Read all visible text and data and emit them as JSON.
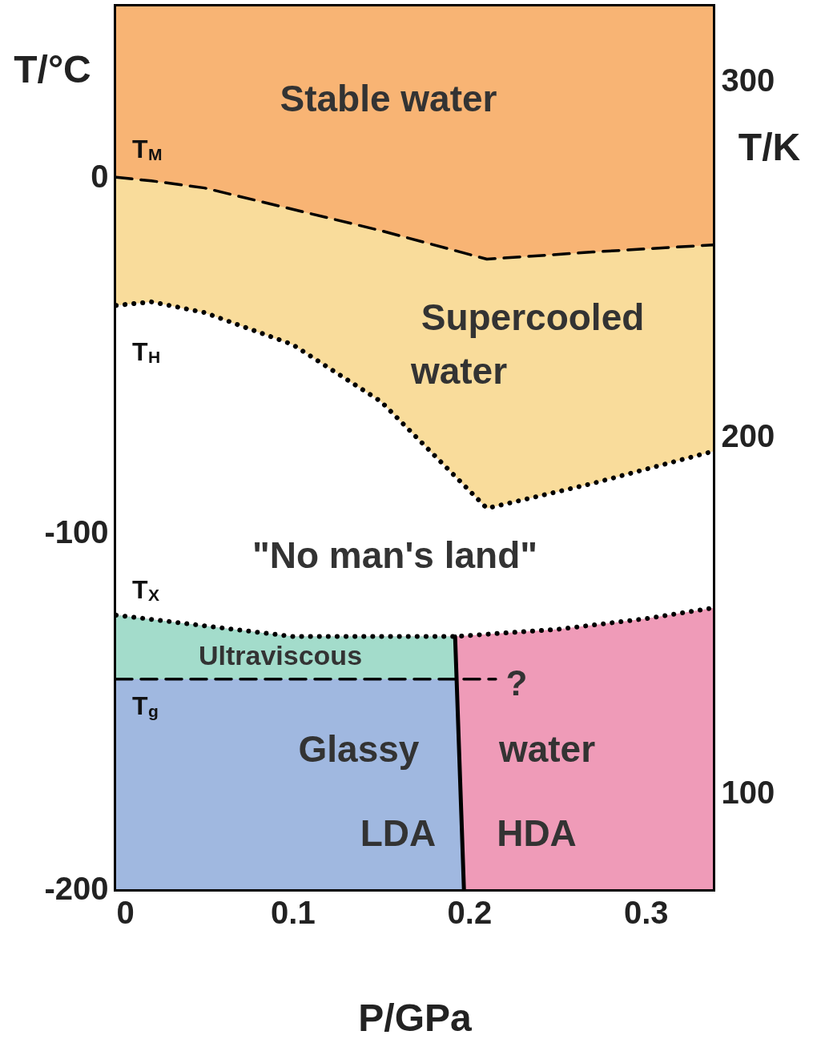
{
  "chart_data": {
    "type": "line",
    "xlabel": "P/GPa",
    "ylabel": "T/°C",
    "y2label": "T/K",
    "xlim": [
      0,
      0.338
    ],
    "xticks": [
      0,
      0.1,
      0.2,
      0.3
    ],
    "ylim": [
      -200,
      48
    ],
    "yticks": [
      -200,
      -100,
      0
    ],
    "y2lim": [
      73.15,
      321
    ],
    "y2ticks": [
      100,
      200,
      300
    ],
    "series": [
      {
        "color": "#000000",
        "line_style": "dashed",
        "x": [
          0,
          0.02,
          0.05,
          0.1,
          0.15,
          0.21,
          0.27,
          0.338
        ],
        "values": [
          0,
          -1,
          -3,
          -9,
          -15,
          -23,
          -21,
          -19
        ]
      },
      {
        "color": "#000000",
        "line_style": "dotted",
        "x": [
          0,
          0.02,
          0.05,
          0.1,
          0.15,
          0.21,
          0.27,
          0.338
        ],
        "values": [
          -36,
          -35,
          -38,
          -47,
          -63,
          -93,
          -86,
          -77
        ]
      },
      {
        "color": "#000000",
        "line_style": "dotted",
        "x": [
          0,
          0.05,
          0.1,
          0.15,
          0.192,
          0.25,
          0.3,
          0.338
        ],
        "values": [
          -123,
          -126,
          -129,
          -129,
          -129,
          -127,
          -124,
          -121
        ]
      },
      {
        "color": "#000000",
        "line_style": "dashed",
        "x": [
          0,
          0.215
        ],
        "values": [
          -141,
          -141
        ]
      },
      {
        "color": "#000000",
        "line_style": "solid",
        "x": [
          0.192,
          0.197
        ],
        "values": [
          -129,
          -200
        ]
      }
    ],
    "annotations": [
      "Stable water",
      "Supercooled",
      "water",
      "\"No man's land\"",
      "Ultraviscous",
      "?",
      "Glassy",
      "water",
      "LDA",
      "HDA",
      "T$_{M}$",
      "T$_{H}$",
      "T$_{X}$",
      "T$_{g}$"
    ]
  }
}
